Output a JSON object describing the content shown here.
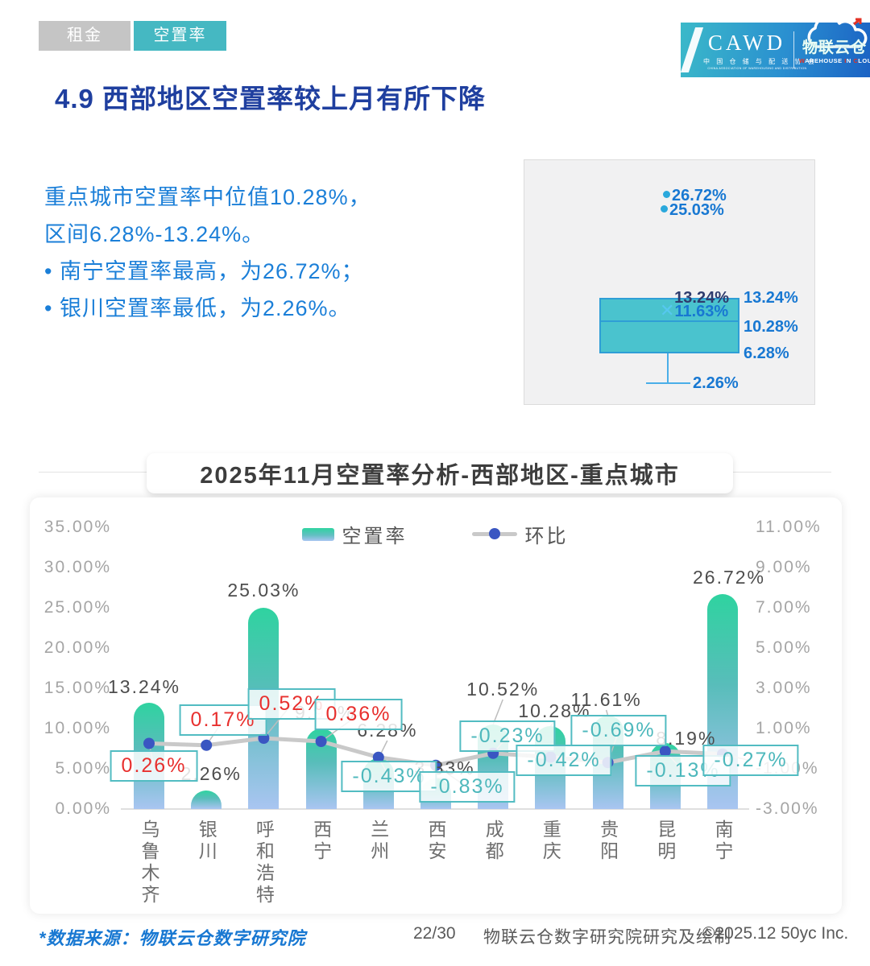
{
  "page": {
    "tabs": [
      {
        "label": "租金",
        "active": false
      },
      {
        "label": "空置率",
        "active": true
      }
    ],
    "title": "4.9 西部地区空置率较上月有所下降",
    "summary": {
      "line1": "重点城市空置率中位值10.28%，",
      "line2": "区间6.28%-13.24%。",
      "bullet1": "•  南宁空置率最高，为26.72%；",
      "bullet2": "•  银川空置率最低，为2.26%。"
    },
    "logo": {
      "cawd": "CAWD",
      "cawd_cn": "中 国 仓 储 与 配 送 协 会",
      "cawd_en": "CHINA ASSOCIATION OF WAREHOUSING AND DISTRIBUTION",
      "wic_cn": "物联云仓",
      "wic_en_parts": [
        "W",
        "AREHOUSE ",
        "I",
        "N ",
        "C",
        "LOUD"
      ]
    },
    "footer": {
      "source": "*数据来源：物联云仓数字研究院",
      "page_num": "22/30",
      "credit": "物联云仓数字研究院研究及绘制",
      "copyright": "©2025.12 50yc Inc."
    }
  },
  "colors": {
    "accent_teal": "#45b8c2",
    "bar_top": "#2fd3a0",
    "bar_bottom": "#a9c5f1",
    "line_gray": "#c9c9c9",
    "dot_blue": "#3a56c2",
    "positive_red": "#e8302e",
    "negative_teal": "#4db8bc",
    "title_navy": "#1f3f9f",
    "body_blue": "#1b7fd8"
  },
  "chart_data": [
    {
      "type": "boxplot",
      "min": 2.26,
      "q1": 6.28,
      "median": 10.28,
      "q3": 13.24,
      "whisker_high": 13.24,
      "mean": 11.63,
      "outliers": [
        26.72,
        25.03
      ],
      "point_labels": {
        "outlier_1": "26.72%",
        "outlier_2": "25.03%",
        "q3_inner": "13.24%",
        "q3": "13.24%",
        "median": "10.28%",
        "mean": "11.63%",
        "mean_marker": "✕",
        "q1": "6.28%",
        "min": "2.26%"
      }
    },
    {
      "type": "bar+line",
      "title": "2025年11月空置率分析-西部地区-重点城市",
      "categories": [
        "乌鲁木齐",
        "银川",
        "呼和浩特",
        "西宁",
        "兰州",
        "西安",
        "成都",
        "重庆",
        "贵阳",
        "昆明",
        "南宁"
      ],
      "series": [
        {
          "name": "空置率",
          "axis": "left",
          "values": [
            13.24,
            2.26,
            25.03,
            9.97,
            6.28,
            3.83,
            10.52,
            10.28,
            11.61,
            8.19,
            26.72
          ],
          "labels": [
            "13.24%",
            "2.26%",
            "25.03%",
            "9.97%",
            "6.28%",
            "3.83%",
            "10.52%",
            "10.28%",
            "11.61%",
            "8.19%",
            "26.72%"
          ]
        },
        {
          "name": "环比",
          "axis": "right",
          "values": [
            0.26,
            0.17,
            0.52,
            0.36,
            -0.43,
            -0.83,
            -0.23,
            -0.42,
            -0.69,
            -0.13,
            -0.27
          ],
          "labels": [
            "0.26%",
            "0.17%",
            "0.52%",
            "0.36%",
            "-0.43%",
            "-0.83%",
            "-0.23%",
            "-0.42%",
            "-0.69%",
            "-0.13%",
            "-0.27%"
          ]
        }
      ],
      "left_axis": {
        "min": 0,
        "max": 35,
        "ticks": [
          "35.00%",
          "30.00%",
          "25.00%",
          "20.00%",
          "15.00%",
          "10.00%",
          "5.00%",
          "0.00%"
        ]
      },
      "right_axis": {
        "min": -3,
        "max": 11,
        "ticks": [
          "11.00%",
          "9.00%",
          "7.00%",
          "5.00%",
          "3.00%",
          "1.00%",
          "-1.00%",
          "-3.00%"
        ]
      },
      "legend_position": "top",
      "grid": false
    }
  ]
}
